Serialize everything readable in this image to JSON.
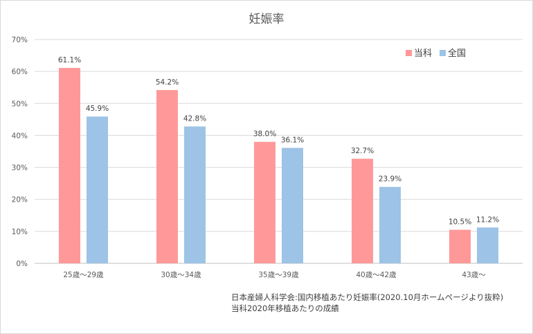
{
  "chart_data": {
    "type": "bar",
    "title": "妊娠率",
    "categories": [
      "25歳〜29歳",
      "30歳〜34歳",
      "35歳〜39歳",
      "40歳〜42歳",
      "43歳〜"
    ],
    "series": [
      {
        "name": "当科",
        "color": "#ff9999",
        "values": [
          61.1,
          54.2,
          38.0,
          32.7,
          10.5
        ],
        "labels": [
          "61.1%",
          "54.2%",
          "38.0%",
          "32.7%",
          "10.5%"
        ]
      },
      {
        "name": "全国",
        "color": "#9dc3e6",
        "values": [
          45.9,
          42.8,
          36.1,
          23.9,
          11.2
        ],
        "labels": [
          "45.9%",
          "42.8%",
          "36.1%",
          "23.9%",
          "11.2%"
        ]
      }
    ],
    "ylim": [
      0,
      70
    ],
    "yticks": [
      "0%",
      "10%",
      "20%",
      "30%",
      "40%",
      "50%",
      "60%",
      "70%"
    ],
    "grid": true,
    "legend": "top-right",
    "xlabel": "",
    "ylabel": ""
  },
  "notes": [
    "日本産婦人科学会:国内移植あたり妊娠率(2020.10月ホームページより抜粋)",
    "当科2020年移植あたりの成績"
  ]
}
